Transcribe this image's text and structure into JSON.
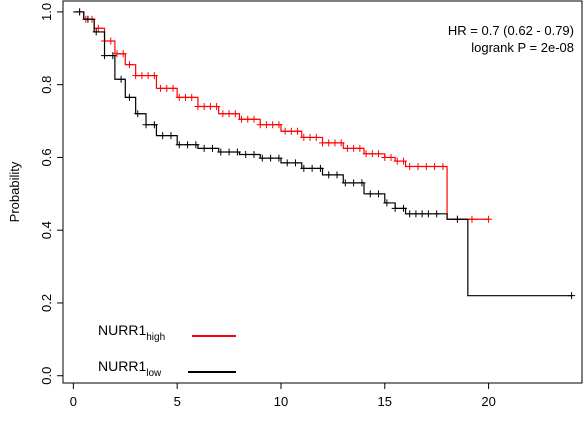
{
  "chart_data": {
    "type": "line",
    "subtype": "kaplan-meier step",
    "title": "",
    "xlabel": "",
    "ylabel": "Probability",
    "xlim": [
      -0.5,
      24.5
    ],
    "ylim": [
      -0.02,
      1.03
    ],
    "x_ticks": [
      0,
      5,
      10,
      15,
      20
    ],
    "y_ticks": [
      0.0,
      0.2,
      0.4,
      0.6,
      0.8,
      1.0
    ],
    "x_tick_labels": [
      "0",
      "5",
      "10",
      "15",
      "20"
    ],
    "y_tick_labels": [
      "0.0",
      "0.2",
      "0.4",
      "0.6",
      "0.8",
      "1.0"
    ],
    "grid": false,
    "annotations": {
      "hr": "HR = 0.7 (0.62 - 0.79)",
      "logrank": "logrank P = 2e-08"
    },
    "legend": {
      "placement": "bottom-left",
      "entries": [
        {
          "base": "NURR1",
          "sub": "high",
          "color": "#ff0000"
        },
        {
          "base": "NURR1",
          "sub": "low",
          "color": "#000000"
        }
      ]
    },
    "series": [
      {
        "key": "high",
        "color": "#ff0000",
        "points": [
          [
            0,
            1.0
          ],
          [
            0.5,
            0.98
          ],
          [
            1,
            0.955
          ],
          [
            1.5,
            0.92
          ],
          [
            2,
            0.885
          ],
          [
            2.5,
            0.855
          ],
          [
            3,
            0.825
          ],
          [
            4,
            0.79
          ],
          [
            5,
            0.765
          ],
          [
            6,
            0.74
          ],
          [
            7,
            0.72
          ],
          [
            8,
            0.705
          ],
          [
            9,
            0.69
          ],
          [
            10,
            0.672
          ],
          [
            11,
            0.655
          ],
          [
            12,
            0.64
          ],
          [
            13,
            0.625
          ],
          [
            14,
            0.61
          ],
          [
            15,
            0.6
          ],
          [
            15.5,
            0.59
          ],
          [
            16,
            0.575
          ],
          [
            18,
            0.575
          ],
          [
            18,
            0.43
          ],
          [
            20,
            0.43
          ]
        ],
        "censors": [
          0.3,
          0.6,
          0.9,
          1.2,
          1.5,
          1.8,
          2.1,
          2.4,
          2.7,
          3.0,
          3.3,
          3.6,
          3.9,
          4.2,
          4.5,
          4.8,
          5.1,
          5.4,
          5.7,
          6.0,
          6.3,
          6.6,
          6.9,
          7.2,
          7.5,
          7.8,
          8.1,
          8.4,
          8.7,
          9.0,
          9.3,
          9.6,
          9.9,
          10.2,
          10.5,
          10.8,
          11.1,
          11.4,
          11.7,
          12.0,
          12.3,
          12.6,
          12.9,
          13.2,
          13.5,
          13.8,
          14.1,
          14.4,
          14.7,
          15.0,
          15.3,
          15.6,
          15.9,
          16.2,
          16.6,
          17.0,
          17.4,
          17.8,
          18.5,
          19.2,
          20.0
        ]
      },
      {
        "key": "low",
        "color": "#000000",
        "points": [
          [
            0,
            1.0
          ],
          [
            0.5,
            0.98
          ],
          [
            1,
            0.945
          ],
          [
            1.5,
            0.88
          ],
          [
            2,
            0.815
          ],
          [
            2.5,
            0.765
          ],
          [
            3,
            0.72
          ],
          [
            3.5,
            0.69
          ],
          [
            4,
            0.66
          ],
          [
            5,
            0.635
          ],
          [
            6,
            0.625
          ],
          [
            7,
            0.615
          ],
          [
            8,
            0.608
          ],
          [
            9,
            0.598
          ],
          [
            10,
            0.585
          ],
          [
            11,
            0.57
          ],
          [
            12,
            0.552
          ],
          [
            13,
            0.53
          ],
          [
            14,
            0.5
          ],
          [
            15,
            0.475
          ],
          [
            15.5,
            0.46
          ],
          [
            16,
            0.445
          ],
          [
            18,
            0.445
          ],
          [
            18,
            0.43
          ],
          [
            19,
            0.43
          ],
          [
            19,
            0.22
          ],
          [
            24,
            0.22
          ]
        ],
        "censors": [
          0.3,
          0.7,
          1.1,
          1.5,
          1.9,
          2.3,
          2.7,
          3.1,
          3.5,
          3.9,
          4.3,
          4.7,
          5.1,
          5.5,
          5.9,
          6.3,
          6.7,
          7.1,
          7.5,
          7.9,
          8.3,
          8.7,
          9.1,
          9.5,
          9.9,
          10.3,
          10.7,
          11.1,
          11.5,
          11.9,
          12.3,
          12.7,
          13.1,
          13.5,
          13.9,
          14.3,
          14.7,
          15.1,
          15.5,
          15.9,
          16.2,
          16.5,
          16.8,
          17.1,
          17.5,
          18.5,
          24.0
        ]
      }
    ]
  }
}
